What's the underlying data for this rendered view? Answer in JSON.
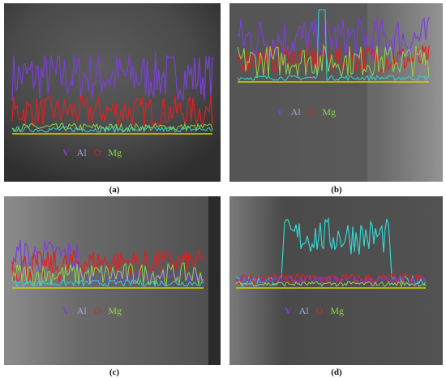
{
  "colors": {
    "violet": "#7b3fd6",
    "al": "#a8a6d8",
    "o": "#e02020",
    "mg": "#8ed34a",
    "cyan": "#32d6d0",
    "baseline": "#d8d000"
  },
  "panels": [
    {
      "caption": "(a)",
      "legend": {
        "v": "V",
        "al": "Al",
        "o": "O",
        "mg": "Mg"
      }
    },
    {
      "caption": "(b)",
      "legend": {
        "v": "V",
        "al": "Al",
        "o": "O",
        "mg": "Mg"
      }
    },
    {
      "caption": "(c)",
      "legend": {
        "v": "V",
        "al": "Al",
        "o": "O",
        "mg": "Mg"
      }
    },
    {
      "caption": "(d)",
      "legend": {
        "v": "V",
        "al": "Al",
        "o": "O",
        "mg": "Mg"
      }
    }
  ]
}
